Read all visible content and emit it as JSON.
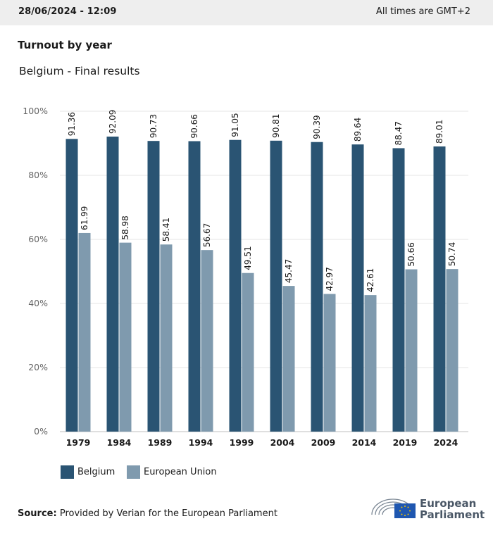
{
  "header": {
    "datetime": "28/06/2024 - 12:09",
    "timezone_note": "All times are GMT+2"
  },
  "title": "Turnout by year",
  "subtitle": "Belgium - Final results",
  "chart_data": {
    "type": "bar",
    "categories": [
      "1979",
      "1984",
      "1989",
      "1994",
      "1999",
      "2004",
      "2009",
      "2014",
      "2019",
      "2024"
    ],
    "series": [
      {
        "name": "Belgium",
        "color": "#2a5473",
        "values": [
          91.36,
          92.09,
          90.73,
          90.66,
          91.05,
          90.81,
          90.39,
          89.64,
          88.47,
          89.01
        ]
      },
      {
        "name": "European Union",
        "color": "#7f9aae",
        "values": [
          61.99,
          58.98,
          58.41,
          56.67,
          49.51,
          45.47,
          42.97,
          42.61,
          50.66,
          50.74
        ]
      }
    ],
    "ylim": [
      0,
      100
    ],
    "yticks": [
      "0%",
      "20%",
      "40%",
      "60%",
      "80%",
      "100%"
    ],
    "grid": true,
    "legend_position": "bottom-left"
  },
  "legend": [
    {
      "label": "Belgium",
      "color": "#2a5473"
    },
    {
      "label": "European Union",
      "color": "#7f9aae"
    }
  ],
  "source": {
    "prefix": "Source:",
    "text": "Provided by Verian for the European Parliament"
  },
  "logo": {
    "line1": "European",
    "line2": "Parliament"
  }
}
